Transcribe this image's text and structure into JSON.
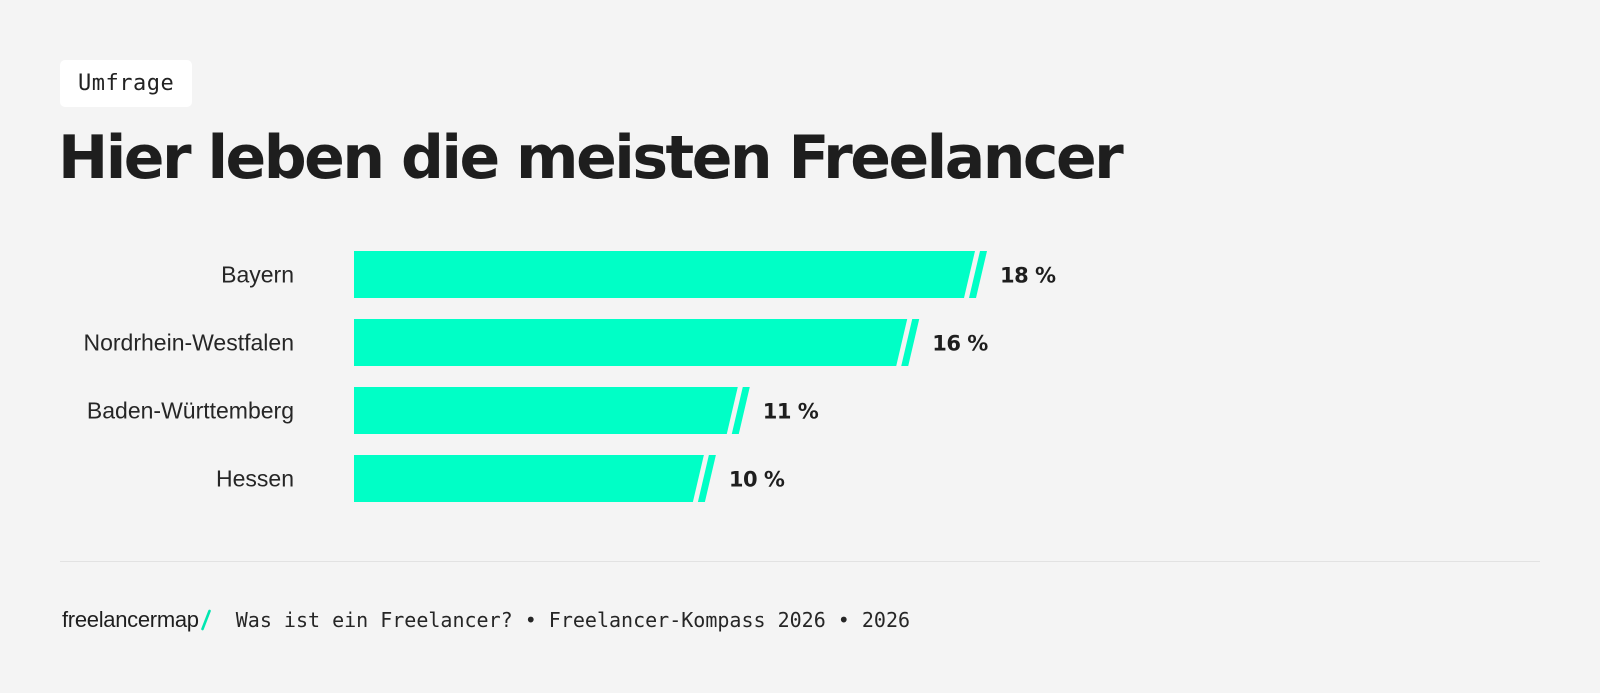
{
  "header": {
    "tag": "Umfrage",
    "title": "Hier leben die meisten Freelancer"
  },
  "footer": {
    "brand": "freelancermap",
    "brand_accent_icon": "slash-icon",
    "source": "Was ist ein Freelancer? • Freelancer-Kompass 2026 • 2026"
  },
  "colors": {
    "bar": "#00ffc6",
    "background": "#f4f4f4",
    "text": "#1e1e1e"
  },
  "chart_data": {
    "type": "bar",
    "orientation": "horizontal",
    "categories": [
      "Bayern",
      "Nordrhein-Westfalen",
      "Baden-Württemberg",
      "Hessen"
    ],
    "values": [
      18,
      16,
      11,
      10
    ],
    "value_labels": [
      "18 %",
      "16 %",
      "11 %",
      "10 %"
    ],
    "unit": "%",
    "xlim": [
      0,
      18
    ],
    "grid": false,
    "legend": "none"
  }
}
